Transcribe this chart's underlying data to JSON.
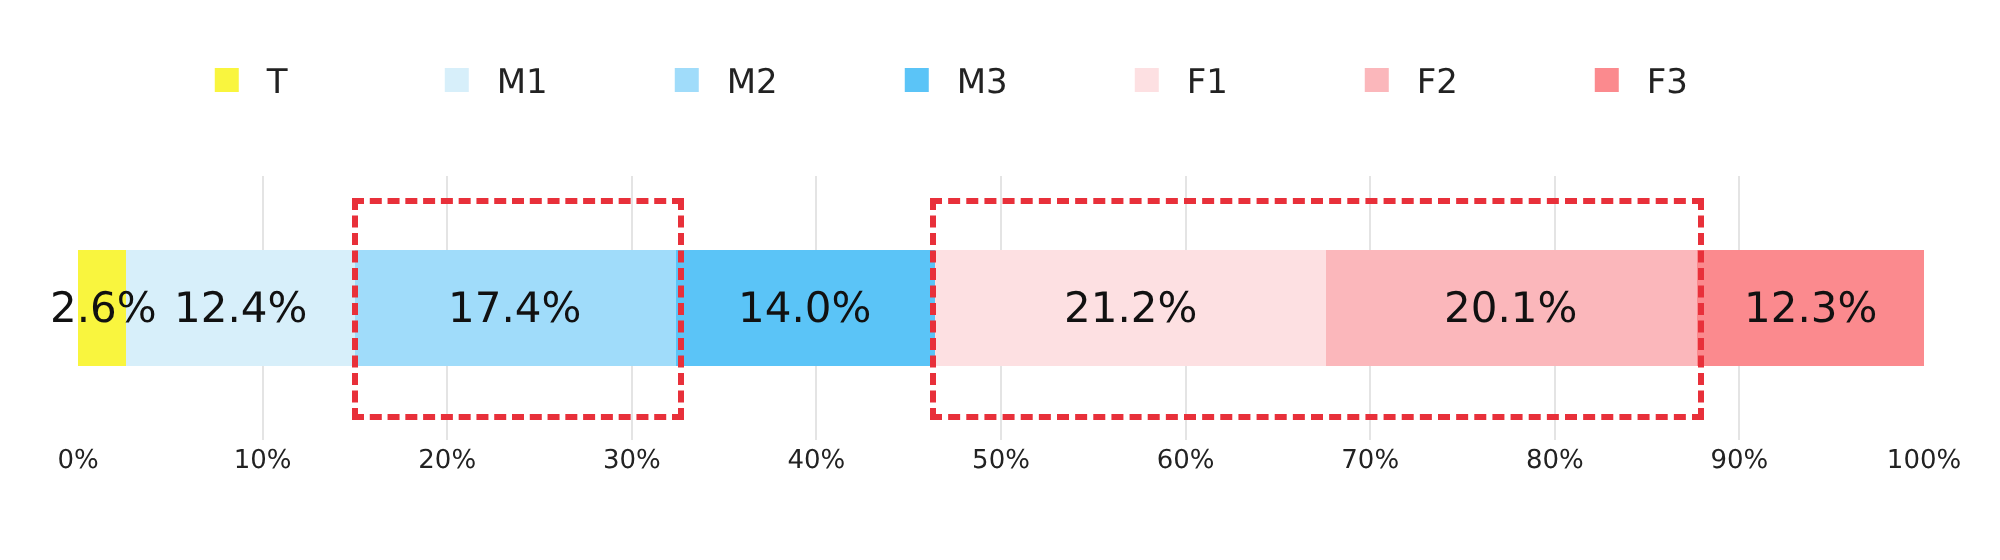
{
  "chart_data": {
    "type": "bar",
    "orientation": "horizontal",
    "stacked": true,
    "categories": [
      null
    ],
    "series": [
      {
        "name": "T",
        "color": "#f9f53e",
        "values": [
          2.6
        ],
        "value_labels": [
          "2.6%"
        ]
      },
      {
        "name": "M1",
        "color": "#d7effa",
        "values": [
          12.4
        ],
        "value_labels": [
          "12.4%"
        ]
      },
      {
        "name": "M2",
        "color": "#a0dcfa",
        "values": [
          17.4
        ],
        "value_labels": [
          "17.4%"
        ]
      },
      {
        "name": "M3",
        "color": "#5bc4f7",
        "values": [
          14.0
        ],
        "value_labels": [
          "14.0%"
        ]
      },
      {
        "name": "F1",
        "color": "#fde0e2",
        "values": [
          21.2
        ],
        "value_labels": [
          "21.2%"
        ]
      },
      {
        "name": "F2",
        "color": "#fbb7bb",
        "values": [
          20.1
        ],
        "value_labels": [
          "20.1%"
        ]
      },
      {
        "name": "F3",
        "color": "#fb8a8e",
        "values": [
          12.3
        ],
        "value_labels": [
          "12.3%"
        ]
      }
    ],
    "xlim": [
      0,
      100
    ],
    "xticks": [
      {
        "value": 0,
        "label": "0%"
      },
      {
        "value": 10,
        "label": "10%"
      },
      {
        "value": 20,
        "label": "20%"
      },
      {
        "value": 30,
        "label": "30%"
      },
      {
        "value": 40,
        "label": "40%"
      },
      {
        "value": 50,
        "label": "50%"
      },
      {
        "value": 60,
        "label": "60%"
      },
      {
        "value": 70,
        "label": "70%"
      },
      {
        "value": 80,
        "label": "80%"
      },
      {
        "value": 90,
        "label": "90%"
      },
      {
        "value": 100,
        "label": "100%"
      }
    ],
    "grid": "x",
    "legend": "top",
    "tick_labels": "x"
  }
}
